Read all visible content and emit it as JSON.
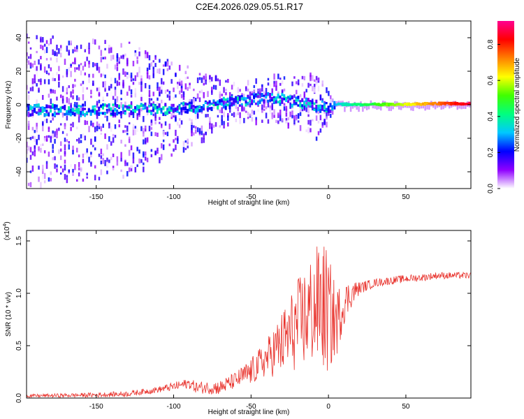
{
  "title": "C2E4.2026.029.05.51.R17",
  "chart_data": [
    {
      "type": "heatmap",
      "xlabel": "Height of straight line (km)",
      "ylabel": "Frequency (Hz)",
      "xlim": [
        -195,
        92
      ],
      "ylim": [
        -50,
        50
      ],
      "x_ticks": [
        -150,
        -100,
        -50,
        0,
        50
      ],
      "y_ticks": [
        -40,
        -20,
        0,
        20,
        40
      ],
      "x_tick_labels": [
        "-150",
        "-100",
        "-50",
        "0",
        "50"
      ],
      "y_tick_labels": [
        "-40",
        "-20",
        "0",
        "20",
        "40"
      ],
      "colorbar": {
        "label": "Normalized spectral amplitude",
        "range": [
          0,
          0.93
        ],
        "ticks": [
          0.0,
          0.2,
          0.4,
          0.6,
          0.8
        ],
        "tick_labels": [
          "0.0",
          "0.2",
          "0.4",
          "0.6",
          "0.8"
        ],
        "colors": [
          "#ffffff",
          "#8f00ff",
          "#0000ff",
          "#00c8ff",
          "#00ff80",
          "#40ff00",
          "#ffff00",
          "#ff8000",
          "#ff0000",
          "#ff0090"
        ]
      },
      "ridge": {
        "x": [
          -195,
          -150,
          -130,
          -100,
          -75,
          -50,
          -35,
          -20,
          -10,
          0,
          5,
          20,
          50,
          70,
          92
        ],
        "y": [
          -3,
          -3,
          -2.5,
          -2.5,
          0,
          3,
          4,
          2,
          0,
          -1,
          0,
          0,
          0,
          0.5,
          0.5
        ]
      },
      "spread_y": {
        "x": [
          -195,
          -130,
          -60,
          -20,
          -8,
          5,
          92
        ],
        "y": [
          45,
          40,
          12,
          15,
          20,
          2,
          1
        ]
      }
    },
    {
      "type": "line",
      "xlabel": "Height of straight line (km)",
      "ylabel": "SNR (10 * v/v)",
      "y_scale_label": "(x10",
      "y_scale_exp": "4",
      "y_scale_suffix": ")",
      "xlim": [
        -195,
        92
      ],
      "ylim": [
        0,
        1.6
      ],
      "x_ticks": [
        -150,
        -100,
        -50,
        0,
        50
      ],
      "y_ticks": [
        0,
        0.5,
        1.0,
        1.5
      ],
      "x_tick_labels": [
        "-150",
        "-100",
        "-50",
        "0",
        "50"
      ],
      "y_tick_labels": [
        "0.0",
        "0.5",
        "1.0",
        "1.5"
      ],
      "color": "#e8302a",
      "envelope": {
        "x": [
          -195,
          -150,
          -130,
          -110,
          -100,
          -90,
          -85,
          -70,
          -60,
          -50,
          -40,
          -30,
          -20,
          -10,
          -5,
          0,
          5,
          10,
          15,
          20,
          30,
          40,
          50,
          60,
          70,
          80,
          92
        ],
        "y": [
          0.02,
          0.03,
          0.04,
          0.08,
          0.11,
          0.14,
          0.1,
          0.1,
          0.17,
          0.25,
          0.38,
          0.52,
          0.7,
          0.85,
          0.9,
          0.8,
          0.72,
          0.9,
          1.0,
          1.05,
          1.1,
          1.12,
          1.14,
          1.15,
          1.17,
          1.17,
          1.17
        ]
      },
      "amplitude": {
        "x": [
          -195,
          -110,
          -60,
          -40,
          -25,
          -10,
          -2,
          5,
          10,
          20,
          30,
          92
        ],
        "y": [
          0.015,
          0.03,
          0.08,
          0.18,
          0.38,
          0.55,
          0.65,
          0.35,
          0.2,
          0.06,
          0.04,
          0.03
        ]
      }
    }
  ]
}
